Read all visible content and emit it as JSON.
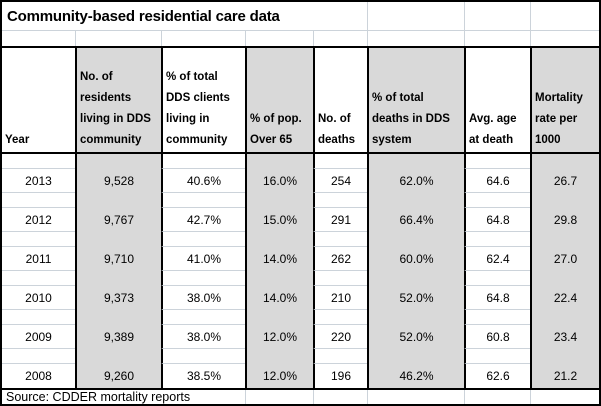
{
  "title": "Community-based residential care data",
  "source": "Source: CDDER mortality reports",
  "colors": {
    "column_fill": "#d9d9d9",
    "gridline": "#ccd3da",
    "border": "#000000",
    "text": "#000000"
  },
  "table": {
    "columns": [
      "Year",
      "No. of\nresidents\nliving in DDS\ncommunity",
      "% of total\nDDS clients\nliving in\ncommunity",
      "% of pop.\nOver 65",
      "No. of\ndeaths",
      "% of total\ndeaths in DDS\nsystem",
      "Avg. age\nat death",
      "Mortality\nrate per\n1000"
    ],
    "rows": [
      {
        "cells": [
          "2013",
          "9,528",
          "40.6%",
          "16.0%",
          "254",
          "62.0%",
          "64.6",
          "26.7"
        ]
      },
      {
        "cells": [
          "2012",
          "9,767",
          "42.7%",
          "15.0%",
          "291",
          "66.4%",
          "64.8",
          "29.8"
        ]
      },
      {
        "cells": [
          "2011",
          "9,710",
          "41.0%",
          "14.0%",
          "262",
          "60.0%",
          "62.4",
          "27.0"
        ]
      },
      {
        "cells": [
          "2010",
          "9,373",
          "38.0%",
          "14.0%",
          "210",
          "52.0%",
          "64.8",
          "22.4"
        ]
      },
      {
        "cells": [
          "2009",
          "9,389",
          "38.0%",
          "12.0%",
          "220",
          "52.0%",
          "60.8",
          "23.4"
        ]
      },
      {
        "cells": [
          "2008",
          "9,260",
          "38.5%",
          "12.0%",
          "196",
          "46.2%",
          "62.6",
          "21.2"
        ]
      }
    ]
  }
}
